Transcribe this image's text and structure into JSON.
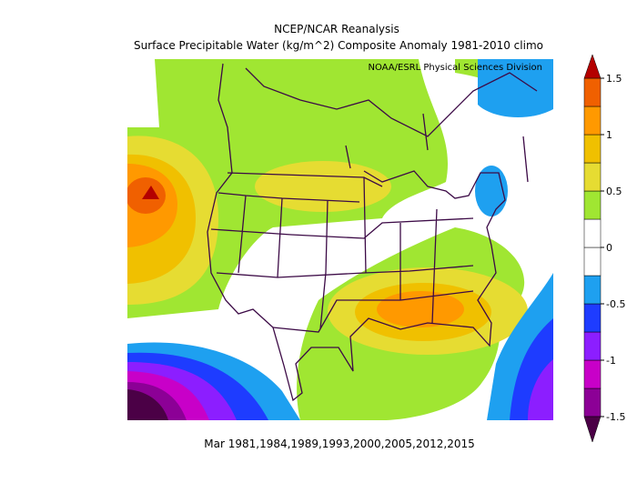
{
  "header": {
    "title": "NCEP/NCAR Reanalysis",
    "subtitle": "Surface Precipitable Water (kg/m^2) Composite Anomaly 1981-2010 climo",
    "credit": "NOAA/ESRL Physical Sciences Division"
  },
  "footer": "Mar 1981,1984,1989,1993,2000,2005,2012,2015",
  "colorbar": {
    "lim": [
      -1.5,
      1.5
    ],
    "ticks": [
      1.5,
      1,
      0.5,
      0,
      -0.5,
      -1,
      -1.5
    ],
    "colors": [
      "#8c0096",
      "#c800c8",
      "#8c1eff",
      "#1e3cff",
      "#1ea0f0",
      "#ffffff",
      "#ffffff",
      "#a0e632",
      "#e6dc32",
      "#f0c000",
      "#ff9900",
      "#f06000"
    ],
    "under_color": "#4b0046",
    "over_color": "#b40000"
  }
}
